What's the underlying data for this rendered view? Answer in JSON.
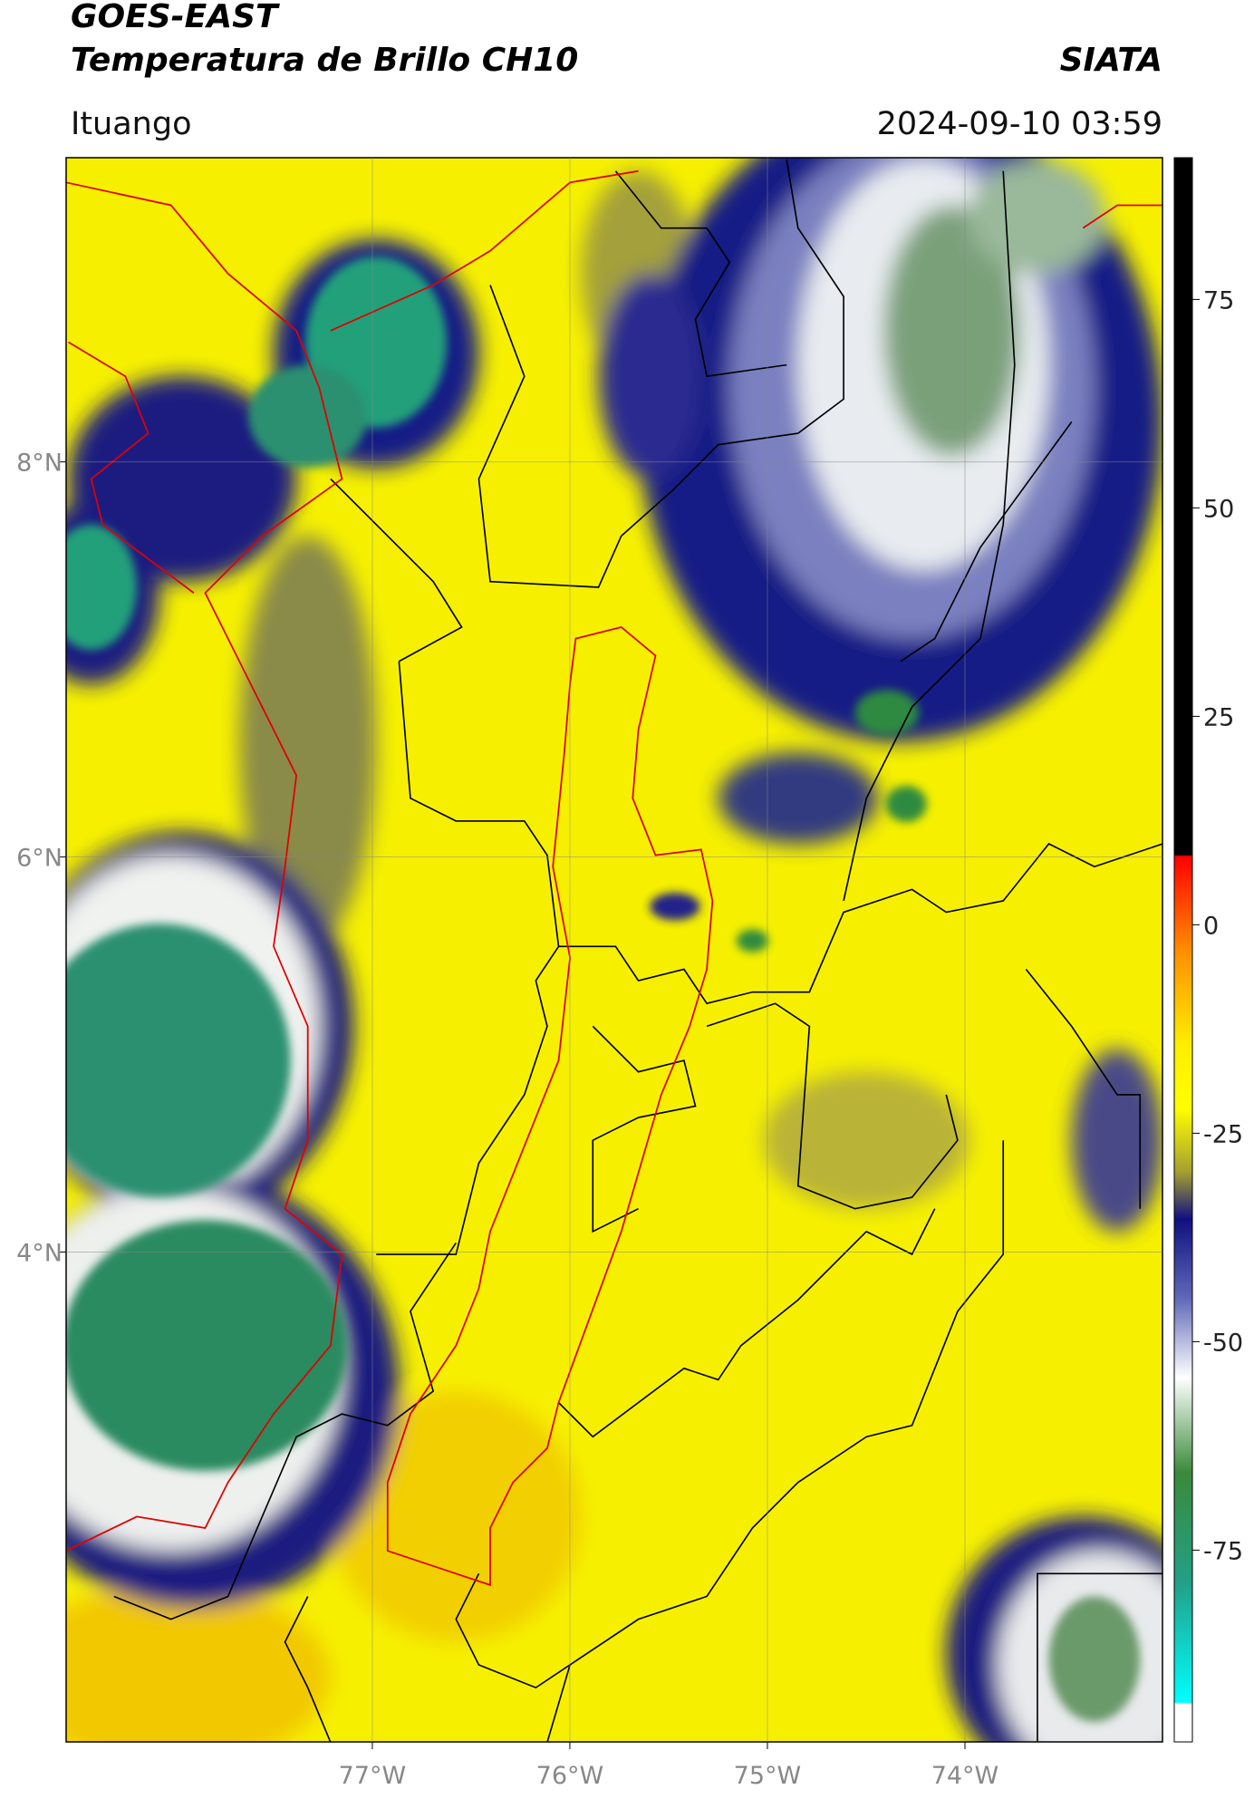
{
  "header": {
    "title": "GOES-EAST",
    "subtitle": "Temperatura de Brillo CH10",
    "brand": "SIATA",
    "place": "Ituango",
    "datetime": "2024-09-10 03:59"
  },
  "map": {
    "xlim": [
      -78.55,
      -73.0
    ],
    "ylim": [
      1.52,
      9.54
    ],
    "xticks": [
      {
        "value": -77,
        "label": "77°W"
      },
      {
        "value": -76,
        "label": "76°W"
      },
      {
        "value": -75,
        "label": "75°W"
      },
      {
        "value": -74,
        "label": "74°W"
      }
    ],
    "yticks": [
      {
        "value": 8,
        "label": "8°N"
      },
      {
        "value": 6,
        "label": "6°N"
      },
      {
        "value": 4,
        "label": "4°N"
      }
    ],
    "grid": true
  },
  "colorbar": {
    "ylim": [
      -98,
      92
    ],
    "yticks": [
      75,
      50,
      25,
      0,
      -25,
      -50,
      -75
    ]
  }
}
